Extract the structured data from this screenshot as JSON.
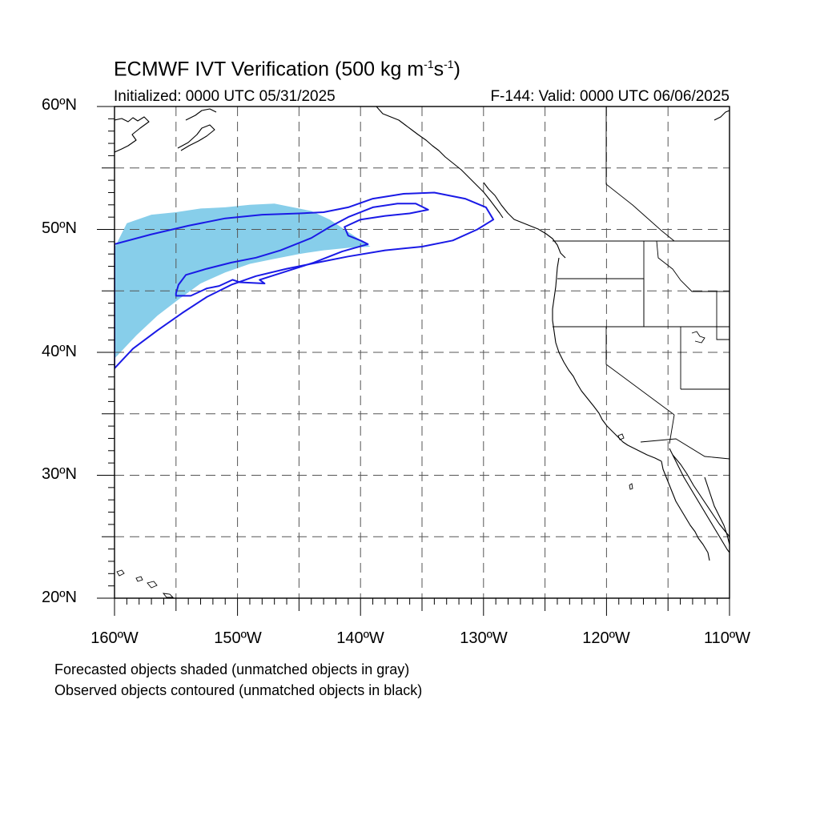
{
  "title": {
    "main": "ECMWF IVT Verification (500 kg m",
    "exp1": "-1",
    "mid": "s",
    "exp2": "-1",
    "end": ")"
  },
  "subtitle": {
    "left": "Initialized: 0000 UTC 05/31/2025",
    "right": "F-144: Valid: 0000 UTC 06/06/2025"
  },
  "axes": {
    "lat_labels": [
      "60ºN",
      "50ºN",
      "40ºN",
      "30ºN",
      "20ºN"
    ],
    "lon_labels": [
      "160ºW",
      "150ºW",
      "140ºW",
      "130ºW",
      "120ºW",
      "110ºW"
    ],
    "lat_range": [
      20,
      60
    ],
    "lon_range": [
      -160,
      -110
    ],
    "gridlines": "dashed, every 5 degrees"
  },
  "legend_text": {
    "line1": "Forecasted objects shaded (unmatched objects in gray)",
    "line2": "Observed objects contoured (unmatched objects in black)"
  },
  "colors": {
    "forecast_fill": "#87ceea",
    "observed_contour": "#1a1ae6",
    "coastline": "#000000",
    "grid": "#555555"
  },
  "chart_data": {
    "type": "map",
    "projection": "cylindrical equidistant",
    "lon_range": [
      -160,
      -110
    ],
    "lat_range": [
      20,
      60
    ],
    "forecast_object_shaded": [
      [
        -160,
        48.5
      ],
      [
        -159,
        50.5
      ],
      [
        -157,
        51.2
      ],
      [
        -155,
        51.4
      ],
      [
        -153,
        51.7
      ],
      [
        -151,
        51.8
      ],
      [
        -149,
        52
      ],
      [
        -147,
        52.1
      ],
      [
        -145.5,
        51.8
      ],
      [
        -144,
        51.5
      ],
      [
        -142.5,
        50.8
      ],
      [
        -141,
        49.8
      ],
      [
        -139.2,
        48.6
      ],
      [
        -141,
        48.5
      ],
      [
        -143,
        48.3
      ],
      [
        -145,
        48
      ],
      [
        -147,
        47.6
      ],
      [
        -149,
        47.2
      ],
      [
        -151,
        46.5
      ],
      [
        -153,
        45.6
      ],
      [
        -154.8,
        44.3
      ],
      [
        -156.5,
        43
      ],
      [
        -158.2,
        41.4
      ],
      [
        -160,
        39.5
      ]
    ],
    "observed_object_outer": [
      [
        -160,
        38.7
      ],
      [
        -158.5,
        40.3
      ],
      [
        -156.5,
        41.8
      ],
      [
        -154.5,
        43.2
      ],
      [
        -152.5,
        44.5
      ],
      [
        -150.5,
        45.5
      ],
      [
        -148.5,
        46.2
      ],
      [
        -146,
        46.8
      ],
      [
        -143.5,
        47.3
      ],
      [
        -141,
        47.8
      ],
      [
        -138,
        48.3
      ],
      [
        -135,
        48.6
      ],
      [
        -132.5,
        49.1
      ],
      [
        -130.5,
        50
      ],
      [
        -129.2,
        50.8
      ],
      [
        -129.8,
        51.8
      ],
      [
        -131.5,
        52.5
      ],
      [
        -134,
        53
      ],
      [
        -136.5,
        52.9
      ],
      [
        -139,
        52.5
      ],
      [
        -141,
        51.8
      ],
      [
        -143,
        51.4
      ],
      [
        -145,
        51.3
      ],
      [
        -148,
        51.2
      ],
      [
        -151,
        50.9
      ],
      [
        -154,
        50.3
      ],
      [
        -157,
        49.6
      ],
      [
        -160,
        48.8
      ]
    ],
    "observed_object_inner": [
      [
        -155,
        44.8
      ],
      [
        -154.8,
        45.5
      ],
      [
        -154.2,
        46.3
      ],
      [
        -152.5,
        46.8
      ],
      [
        -150.5,
        47.3
      ],
      [
        -148.5,
        47.7
      ],
      [
        -146.5,
        48.3
      ],
      [
        -144,
        49.3
      ],
      [
        -142.5,
        50.2
      ],
      [
        -141,
        51
      ],
      [
        -139,
        51.8
      ],
      [
        -137,
        52.1
      ],
      [
        -135.5,
        52.1
      ],
      [
        -134.5,
        51.6
      ],
      [
        -136,
        51.3
      ],
      [
        -138,
        51.1
      ],
      [
        -140,
        50.8
      ],
      [
        -141.3,
        50.2
      ],
      [
        -141,
        49.5
      ],
      [
        -140,
        49.1
      ],
      [
        -139.4,
        48.8
      ],
      [
        -141.5,
        48.2
      ],
      [
        -143.8,
        47.3
      ],
      [
        -146,
        46.6
      ],
      [
        -148.2,
        45.9
      ],
      [
        -147.8,
        45.6
      ],
      [
        -149.8,
        45.7
      ],
      [
        -150.4,
        45.9
      ],
      [
        -151.5,
        45.4
      ],
      [
        -152.5,
        45.2
      ],
      [
        -153.8,
        44.6
      ],
      [
        -155,
        44.6
      ]
    ]
  }
}
